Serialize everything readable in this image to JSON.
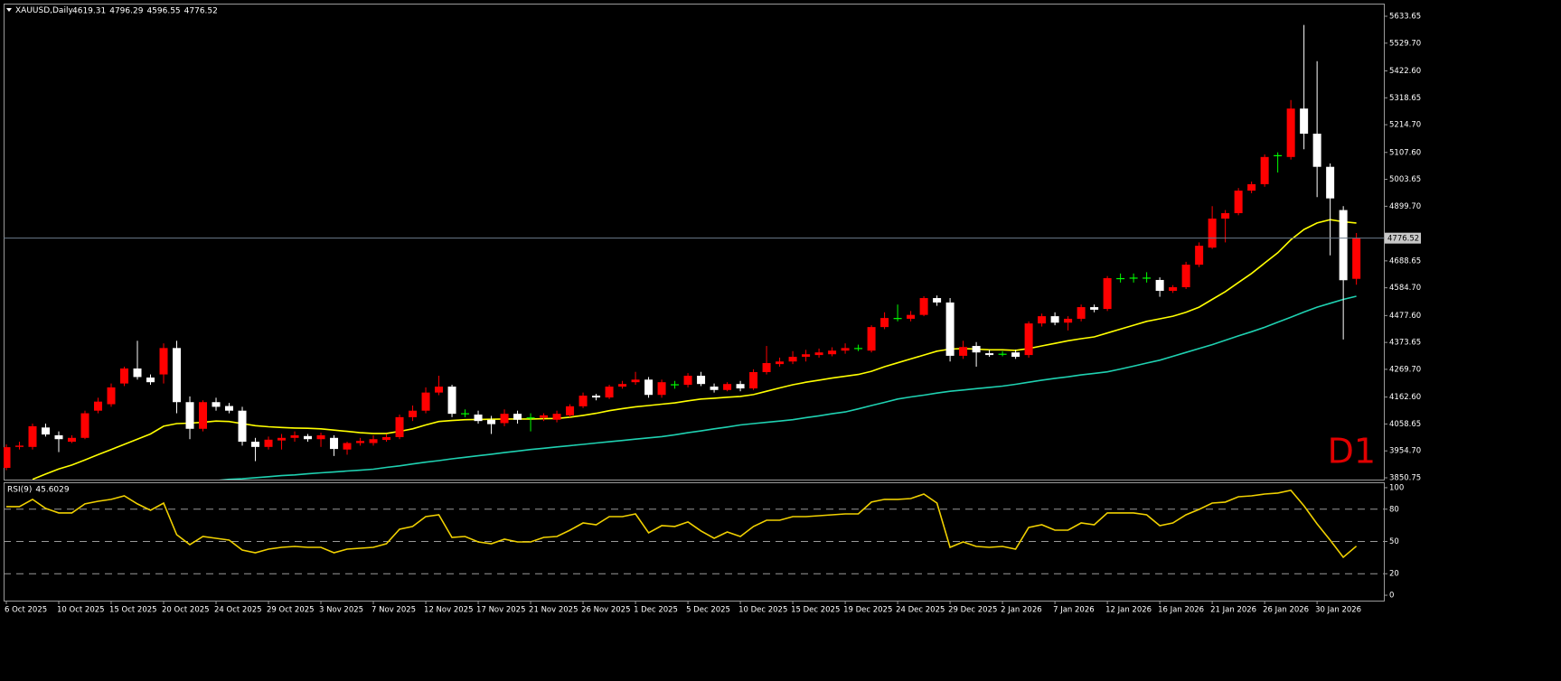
{
  "chart_data": [
    {
      "type": "candlestick",
      "title": "XAUUSD,Daily",
      "annotation": "D1",
      "categories": [
        "6 Oct 2025",
        null,
        null,
        null,
        "10 Oct 2025",
        null,
        null,
        null,
        "15 Oct 2025",
        null,
        null,
        null,
        "20 Oct 2025",
        null,
        null,
        null,
        "24 Oct 2025",
        null,
        null,
        null,
        "29 Oct 2025",
        null,
        null,
        null,
        "3 Nov 2025",
        null,
        null,
        null,
        "7 Nov 2025",
        null,
        null,
        null,
        "12 Nov 2025",
        null,
        null,
        null,
        "17 Nov 2025",
        null,
        null,
        null,
        "21 Nov 2025",
        null,
        null,
        null,
        "26 Nov 2025",
        null,
        null,
        null,
        "1 Dec 2025",
        null,
        null,
        null,
        "5 Dec 2025",
        null,
        null,
        null,
        "10 Dec 2025",
        null,
        null,
        null,
        "15 Dec 2025",
        null,
        null,
        null,
        "19 Dec 2025",
        null,
        null,
        null,
        "24 Dec 2025",
        null,
        null,
        null,
        "29 Dec 2025",
        null,
        null,
        null,
        "2 Jan 2026",
        null,
        null,
        null,
        "7 Jan 2026",
        null,
        null,
        null,
        "12 Jan 2026",
        null,
        null,
        null,
        "16 Jan 2026",
        null,
        null,
        null,
        "21 Jan 2026",
        null,
        null,
        null,
        "26 Jan 2026",
        null,
        null,
        null,
        "30 Jan 2026",
        null,
        null,
        null
      ],
      "open": [
        3889,
        3970,
        3970,
        4045,
        4015,
        3990,
        4005,
        4110,
        4135,
        4215,
        4273,
        4238,
        4250,
        4352,
        4143,
        4040,
        4143,
        4128,
        4110,
        3990,
        3970,
        3995,
        4005,
        4012,
        4000,
        4005,
        3960,
        3985,
        3985,
        3997,
        4008,
        4085,
        4110,
        4180,
        4203,
        4098,
        4095,
        4075,
        4062,
        4098,
        4082,
        4083,
        4075,
        4092,
        4127,
        4168,
        4161,
        4203,
        4220,
        4230,
        4171,
        4210,
        4210,
        4245,
        4203,
        4190,
        4213,
        4196,
        4259,
        4290,
        4300,
        4318,
        4325,
        4328,
        4342,
        4350,
        4342,
        4433,
        4466,
        4465,
        4480,
        4545,
        4528,
        4322,
        4360,
        4332,
        4328,
        4335,
        4325,
        4447,
        4475,
        4450,
        4465,
        4510,
        4503,
        4620,
        4622,
        4622,
        4615,
        4573,
        4587,
        4674,
        4740,
        4852,
        4873,
        4960,
        4985,
        5095,
        5090,
        5277,
        5180,
        5052,
        4885,
        4619.31
      ],
      "high": [
        3980,
        3990,
        4060,
        4060,
        4030,
        4015,
        4110,
        4160,
        4215,
        4280,
        4380,
        4250,
        4370,
        4380,
        4165,
        4150,
        4160,
        4140,
        4125,
        4005,
        4010,
        4020,
        4030,
        4020,
        4025,
        4015,
        3990,
        4005,
        4015,
        4020,
        4095,
        4130,
        4200,
        4245,
        4210,
        4115,
        4110,
        4090,
        4115,
        4110,
        4100,
        4100,
        4110,
        4135,
        4180,
        4175,
        4210,
        4225,
        4260,
        4240,
        4230,
        4225,
        4255,
        4260,
        4215,
        4220,
        4225,
        4270,
        4360,
        4315,
        4340,
        4345,
        4350,
        4355,
        4370,
        4365,
        4440,
        4490,
        4520,
        4495,
        4552,
        4555,
        4545,
        4380,
        4375,
        4345,
        4340,
        4345,
        4455,
        4485,
        4490,
        4475,
        4520,
        4520,
        4630,
        4640,
        4640,
        4645,
        4625,
        4595,
        4685,
        4760,
        4900,
        4885,
        4970,
        4995,
        5100,
        5108,
        5310,
        5600,
        5460,
        5065,
        4900,
        4796.29
      ],
      "low": [
        3880,
        3960,
        3960,
        4010,
        3950,
        3985,
        4000,
        4100,
        4125,
        4205,
        4230,
        4210,
        4215,
        4100,
        4000,
        4030,
        4110,
        4100,
        3975,
        3915,
        3960,
        3960,
        3990,
        3990,
        3970,
        3935,
        3940,
        3975,
        3975,
        3990,
        4000,
        4070,
        4100,
        4170,
        4085,
        4085,
        4060,
        4020,
        4050,
        4060,
        4030,
        4070,
        4065,
        4085,
        4120,
        4150,
        4155,
        4195,
        4210,
        4160,
        4160,
        4195,
        4200,
        4205,
        4180,
        4185,
        4185,
        4190,
        4250,
        4280,
        4290,
        4300,
        4315,
        4320,
        4330,
        4340,
        4335,
        4425,
        4455,
        4455,
        4475,
        4515,
        4300,
        4310,
        4280,
        4318,
        4320,
        4310,
        4315,
        4435,
        4440,
        4420,
        4455,
        4490,
        4495,
        4605,
        4605,
        4605,
        4550,
        4565,
        4580,
        4665,
        4735,
        4760,
        4865,
        4950,
        4975,
        5030,
        5080,
        5120,
        4935,
        4710,
        4385,
        4596.55
      ],
      "close": [
        3969,
        3975,
        4050,
        4018,
        4000,
        4005,
        4100,
        4145,
        4200,
        4273,
        4240,
        4220,
        4352,
        4143,
        4040,
        4143,
        4125,
        4110,
        3990,
        3970,
        3998,
        4005,
        4015,
        4000,
        4015,
        3962,
        3985,
        3993,
        4000,
        4008,
        4085,
        4110,
        4180,
        4203,
        4098,
        4100,
        4070,
        4058,
        4098,
        4075,
        4085,
        4092,
        4098,
        4127,
        4168,
        4161,
        4203,
        4213,
        4230,
        4171,
        4220,
        4212,
        4245,
        4213,
        4190,
        4213,
        4196,
        4259,
        4294,
        4300,
        4318,
        4328,
        4335,
        4342,
        4352,
        4352,
        4433,
        4468,
        4469,
        4480,
        4545,
        4528,
        4322,
        4356,
        4335,
        4325,
        4330,
        4318,
        4447,
        4475,
        4450,
        4465,
        4510,
        4500,
        4622,
        4623,
        4624,
        4625,
        4573,
        4587,
        4674,
        4747,
        4852,
        4873,
        4960,
        4985,
        5090,
        5098,
        5277,
        5180,
        5052,
        4930,
        4614,
        4776.52
      ],
      "up_color": "#ff0000",
      "down_color": "#ffffff",
      "doji_color": "#00ff00",
      "lines": [
        {
          "color": "#ffff00",
          "values": [
            null,
            null,
            3845,
            3865,
            3885,
            3900,
            3920,
            3940,
            3960,
            3980,
            4000,
            4020,
            4050,
            4060,
            4062,
            4065,
            4070,
            4068,
            4060,
            4052,
            4048,
            4045,
            4043,
            4042,
            4040,
            4035,
            4030,
            4025,
            4022,
            4022,
            4030,
            4040,
            4055,
            4068,
            4072,
            4075,
            4076,
            4077,
            4078,
            4078,
            4078,
            4079,
            4080,
            4085,
            4092,
            4100,
            4110,
            4118,
            4125,
            4130,
            4135,
            4140,
            4148,
            4155,
            4158,
            4162,
            4165,
            4172,
            4185,
            4198,
            4210,
            4220,
            4228,
            4236,
            4243,
            4250,
            4262,
            4280,
            4295,
            4310,
            4325,
            4340,
            4348,
            4350,
            4348,
            4345,
            4345,
            4343,
            4350,
            4360,
            4370,
            4380,
            4388,
            4395,
            4410,
            4425,
            4440,
            4455,
            4465,
            4475,
            4490,
            4510,
            4540,
            4570,
            4605,
            4640,
            4680,
            4720,
            4770,
            4810,
            4835,
            4848,
            4840,
            4835
          ]
        },
        {
          "color": "#1fd1b1",
          "values": [
            3760,
            3765,
            3770,
            3775,
            3780,
            3785,
            3790,
            3795,
            3800,
            3805,
            3810,
            3815,
            3820,
            3825,
            3830,
            3835,
            3840,
            3845,
            3847,
            3851,
            3855,
            3859,
            3862,
            3866,
            3870,
            3873,
            3877,
            3880,
            3884,
            3891,
            3897,
            3904,
            3911,
            3917,
            3924,
            3930,
            3936,
            3942,
            3948,
            3954,
            3960,
            3965,
            3970,
            3975,
            3980,
            3985,
            3990,
            3995,
            4000,
            4005,
            4010,
            4017,
            4025,
            4032,
            4040,
            4047,
            4055,
            4060,
            4065,
            4070,
            4075,
            4083,
            4090,
            4098,
            4105,
            4117,
            4130,
            4142,
            4155,
            4163,
            4170,
            4178,
            4185,
            4190,
            4195,
            4200,
            4205,
            4212,
            4220,
            4228,
            4235,
            4241,
            4248,
            4254,
            4260,
            4271,
            4282,
            4294,
            4305,
            4320,
            4335,
            4350,
            4365,
            4382,
            4399,
            4415,
            4432,
            4452,
            4471,
            4491,
            4510,
            4525,
            4540,
            4552
          ]
        }
      ],
      "ylim": [
        3843.8,
        5679
      ],
      "yticks": [
        3850.75,
        {
          "value": 3954.7,
          "label": "3954.70"
        },
        4058.65,
        {
          "value": 4162.6,
          "label": "4162.60"
        },
        {
          "value": 4269.7,
          "label": "4269.70"
        },
        4373.65,
        {
          "value": 4477.6,
          "label": "4477.60"
        },
        {
          "value": 4584.7,
          "label": "4584.70"
        },
        4688.65,
        {
          "value": 4899.7,
          "label": "4899.70"
        },
        5003.65,
        {
          "value": 5107.6,
          "label": "5107.60"
        },
        {
          "value": 5214.7,
          "label": "5214.70"
        },
        5318.65,
        {
          "value": 5422.6,
          "label": "5422.60"
        },
        {
          "value": 5529.7,
          "label": "5529.70"
        },
        5633.65
      ]
    },
    {
      "type": "line",
      "title": "RSI(9)",
      "color": "#f0d000",
      "values": [
        82.4,
        82.4,
        89.1,
        80.7,
        76.5,
        76.5,
        84.9,
        87.4,
        89.1,
        92.4,
        84.9,
        79.0,
        85.7,
        56.3,
        47.1,
        54.6,
        52.9,
        51.3,
        42.0,
        39.5,
        42.9,
        44.5,
        45.4,
        44.5,
        44.5,
        39.5,
        42.9,
        43.7,
        44.5,
        47.9,
        61.3,
        63.9,
        73.1,
        74.8,
        53.8,
        54.6,
        49.6,
        47.9,
        52.1,
        49.6,
        49.6,
        53.8,
        54.6,
        60.5,
        67.2,
        65.5,
        73.1,
        73.1,
        75.6,
        58.0,
        64.7,
        63.9,
        68.1,
        59.7,
        52.9,
        58.8,
        54.6,
        63.9,
        69.7,
        69.7,
        73.1,
        73.1,
        73.9,
        74.8,
        75.6,
        75.6,
        86.6,
        89.1,
        89.1,
        89.9,
        94.1,
        85.7,
        44.5,
        49.6,
        45.4,
        44.5,
        45.4,
        42.9,
        63.0,
        65.5,
        60.5,
        60.5,
        67.2,
        65.5,
        76.5,
        76.5,
        76.5,
        74.8,
        64.7,
        67.2,
        74.8,
        79.8,
        85.7,
        86.6,
        91.6,
        92.4,
        94.1,
        95.0,
        97.5,
        83.2,
        66.4,
        51.3,
        35.3,
        45.6029
      ],
      "ylim": [
        -5,
        105
      ],
      "yticks": [
        100,
        80,
        50,
        20,
        0
      ],
      "levels": [
        80,
        50,
        20
      ]
    }
  ]
}
